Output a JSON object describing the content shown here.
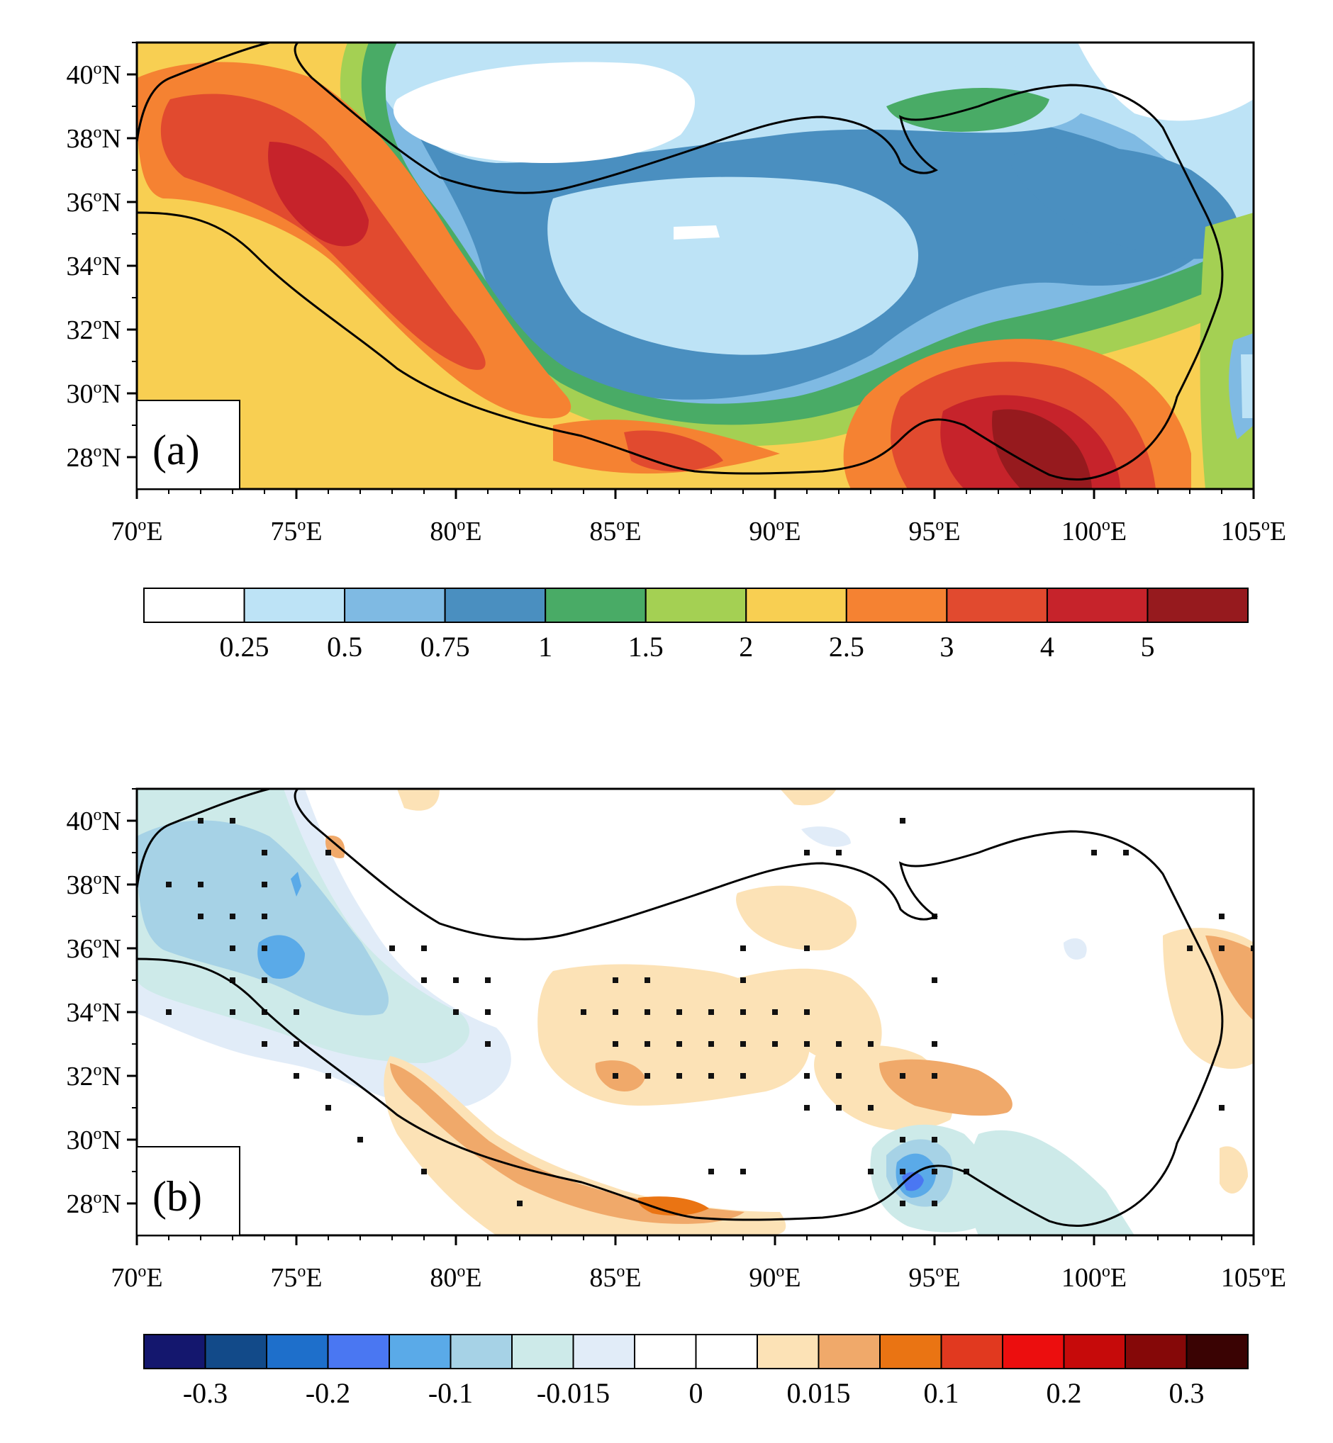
{
  "panels": [
    {
      "label": "(a)",
      "x_ticks": [
        "70oE",
        "75oE",
        "80oE",
        "85oE",
        "90oE",
        "95oE",
        "100oE",
        "105oE"
      ],
      "y_ticks": [
        "40oN",
        "38oN",
        "36oN",
        "34oN",
        "32oN",
        "30oN",
        "28oN"
      ],
      "colorbar": {
        "labels": [
          "0.25",
          "0.5",
          "0.75",
          "1",
          "1.5",
          "2",
          "2.5",
          "3",
          "4",
          "5"
        ],
        "colors": [
          "#ffffff",
          "#bde3f6",
          "#7fbae3",
          "#4a8fc0",
          "#49ab66",
          "#a4d053",
          "#f8cf52",
          "#f58232",
          "#e14a2f",
          "#c6232b",
          "#961a1e"
        ]
      }
    },
    {
      "label": "(b)",
      "x_ticks": [
        "70oE",
        "75oE",
        "80oE",
        "85oE",
        "90oE",
        "95oE",
        "100oE",
        "105oE"
      ],
      "y_ticks": [
        "40oN",
        "38oN",
        "36oN",
        "34oN",
        "32oN",
        "30oN",
        "28oN"
      ],
      "colorbar": {
        "labels": [
          "-0.3",
          "-0.2",
          "-0.1",
          "-0.015",
          "0",
          "0.015",
          "0.1",
          "0.2",
          "0.3"
        ],
        "colors": [
          "#14176e",
          "#124a89",
          "#1e6fcb",
          "#4a77f2",
          "#5aaae8",
          "#a6d2e6",
          "#cdeae9",
          "#e1ecf8",
          "#ffffff",
          "#ffffff",
          "#fce2b6",
          "#f0a96a",
          "#ea7413",
          "#e1391f",
          "#ec0e0e",
          "#c60a0a",
          "#850808",
          "#3a0303"
        ]
      }
    }
  ],
  "map_extent": {
    "lon": [
      70,
      105
    ],
    "lat": [
      27,
      41
    ]
  },
  "significance_points_b": [
    [
      72,
      40
    ],
    [
      73,
      40
    ],
    [
      94,
      40
    ],
    [
      74,
      39
    ],
    [
      76,
      39
    ],
    [
      91,
      39
    ],
    [
      92,
      39
    ],
    [
      100,
      39
    ],
    [
      101,
      39
    ],
    [
      71,
      38
    ],
    [
      72,
      38
    ],
    [
      74,
      38
    ],
    [
      72,
      37
    ],
    [
      73,
      37
    ],
    [
      74,
      37
    ],
    [
      95,
      37
    ],
    [
      104,
      37
    ],
    [
      73,
      36
    ],
    [
      74,
      36
    ],
    [
      78,
      36
    ],
    [
      79,
      36
    ],
    [
      89,
      36
    ],
    [
      91,
      36
    ],
    [
      103,
      36
    ],
    [
      104,
      36
    ],
    [
      105,
      36
    ],
    [
      73,
      35
    ],
    [
      74,
      35
    ],
    [
      79,
      35
    ],
    [
      80,
      35
    ],
    [
      81,
      35
    ],
    [
      85,
      35
    ],
    [
      86,
      35
    ],
    [
      89,
      35
    ],
    [
      95,
      35
    ],
    [
      71,
      34
    ],
    [
      73,
      34
    ],
    [
      74,
      34
    ],
    [
      75,
      34
    ],
    [
      80,
      34
    ],
    [
      81,
      34
    ],
    [
      84,
      34
    ],
    [
      85,
      34
    ],
    [
      86,
      34
    ],
    [
      87,
      34
    ],
    [
      88,
      34
    ],
    [
      89,
      34
    ],
    [
      90,
      34
    ],
    [
      91,
      34
    ],
    [
      74,
      33
    ],
    [
      75,
      33
    ],
    [
      81,
      33
    ],
    [
      85,
      33
    ],
    [
      86,
      33
    ],
    [
      87,
      33
    ],
    [
      88,
      33
    ],
    [
      89,
      33
    ],
    [
      90,
      33
    ],
    [
      91,
      33
    ],
    [
      92,
      33
    ],
    [
      93,
      33
    ],
    [
      95,
      33
    ],
    [
      75,
      32
    ],
    [
      76,
      32
    ],
    [
      85,
      32
    ],
    [
      86,
      32
    ],
    [
      87,
      32
    ],
    [
      88,
      32
    ],
    [
      89,
      32
    ],
    [
      91,
      32
    ],
    [
      92,
      32
    ],
    [
      94,
      32
    ],
    [
      95,
      32
    ],
    [
      76,
      31
    ],
    [
      91,
      31
    ],
    [
      92,
      31
    ],
    [
      93,
      31
    ],
    [
      104,
      31
    ],
    [
      77,
      30
    ],
    [
      94,
      30
    ],
    [
      95,
      30
    ],
    [
      79,
      29
    ],
    [
      88,
      29
    ],
    [
      89,
      29
    ],
    [
      93,
      29
    ],
    [
      94,
      29
    ],
    [
      95,
      29
    ],
    [
      96,
      29
    ],
    [
      82,
      28
    ],
    [
      94,
      28
    ],
    [
      95,
      28
    ]
  ]
}
